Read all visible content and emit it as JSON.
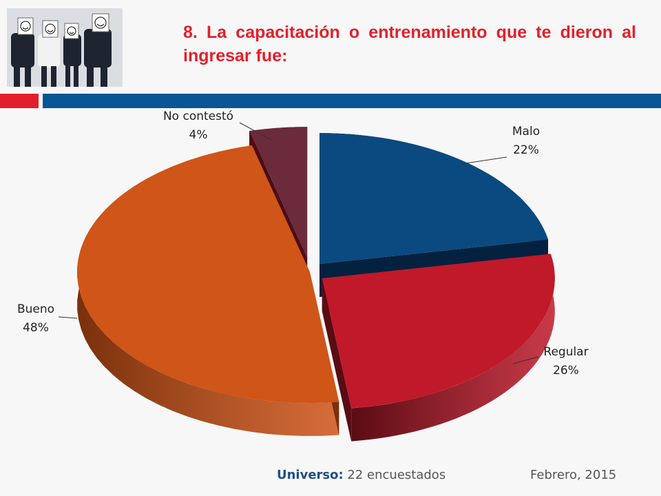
{
  "title": "8. La capacitación o entrenamiento que te dieron al ingresar fue:",
  "chart_data": {
    "type": "pie",
    "categories": [
      "Malo",
      "Regular",
      "Bueno",
      "No contestó"
    ],
    "values": [
      22,
      26,
      48,
      4
    ],
    "labels": [
      "22%",
      "26%",
      "48%",
      "4%"
    ],
    "colors": [
      "#0a4a80",
      "#c0192a",
      "#d05518",
      "#6b2b3a"
    ],
    "side_colors": [
      "#04213f",
      "#5a0c14",
      "#7a300c",
      "#4d0c14"
    ],
    "style": "3d-exploded"
  },
  "footer": {
    "universe_label": "Universo:",
    "universe_value": " 22 encuestados",
    "date": "Febrero, 2015"
  },
  "colors": {
    "accent_red": "#e2202b",
    "accent_blue": "#0a5596"
  }
}
